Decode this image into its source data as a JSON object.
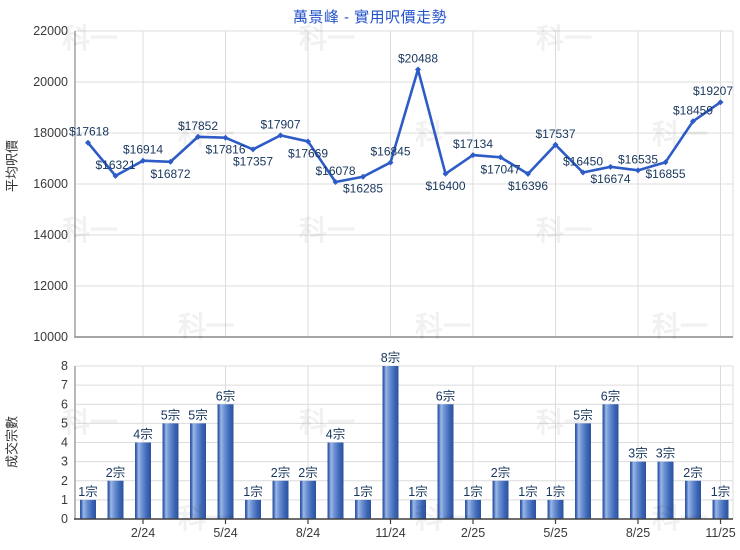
{
  "title": "萬景峰 - 實用呎價走勢",
  "watermark_text": "科一",
  "colors": {
    "title": "#2353cb",
    "line": "#2e5cc7",
    "data_label": "#17365d",
    "tick_label": "#3a3a3a",
    "grid": "#dcdcdc",
    "axis_light": "#a6a6a6",
    "axis_dark": "#3f3f3f",
    "bar_edge": "#2c519e",
    "bar_highlight": "#9db7e6"
  },
  "chart_data": [
    {
      "type": "line",
      "title": "萬景峰 - 實用呎價走勢",
      "ylabel": "平均呎價",
      "ylim": [
        10000,
        22000
      ],
      "yticks": [
        22000,
        20000,
        18000,
        16000,
        14000,
        12000,
        10000
      ],
      "x_tick_positions": [
        3,
        6,
        9,
        12,
        15,
        18,
        21,
        24
      ],
      "x_tick_labels": [
        "2/24",
        "5/24",
        "8/24",
        "11/24",
        "2/25",
        "5/25",
        "8/25",
        "11/25"
      ],
      "values": [
        17618,
        16321,
        16914,
        16872,
        17852,
        17816,
        17357,
        17907,
        17669,
        16078,
        16285,
        16845,
        20488,
        16400,
        17134,
        17047,
        16396,
        17537,
        16450,
        16674,
        16535,
        16855,
        18459,
        19207
      ],
      "point_labels": [
        "$17618",
        "$16321",
        "$16914",
        "$16872",
        "$17852",
        "$17816",
        "$17357",
        "$17907",
        "$17669",
        "$16078",
        "$16285",
        "$16845",
        "$20488",
        "$16400",
        "$17134",
        "$17047",
        "$16396",
        "$17537",
        "$16450",
        "$16674",
        "$16535",
        "$16855",
        "$18459",
        "$19207"
      ],
      "label_placement": [
        "above",
        "above",
        "above",
        "below",
        "above",
        "below",
        "below",
        "above",
        "below",
        "above",
        "below",
        "above",
        "above",
        "below",
        "above",
        "below",
        "below",
        "above",
        "above",
        "below",
        "above",
        "below",
        "above",
        "above"
      ],
      "grid": true,
      "legend": "none"
    },
    {
      "type": "bar",
      "title": "",
      "ylabel": "成交宗數",
      "ylim": [
        0,
        8
      ],
      "yticks": [
        8,
        7,
        6,
        5,
        4,
        3,
        2,
        1,
        0
      ],
      "x_tick_positions": [
        3,
        6,
        9,
        12,
        15,
        18,
        21,
        24
      ],
      "x_tick_labels": [
        "2/24",
        "5/24",
        "8/24",
        "11/24",
        "2/25",
        "5/25",
        "8/25",
        "11/25"
      ],
      "values": [
        1,
        2,
        4,
        5,
        5,
        6,
        1,
        2,
        2,
        4,
        1,
        8,
        1,
        6,
        1,
        2,
        1,
        1,
        5,
        6,
        3,
        3,
        2,
        1
      ],
      "bar_labels": [
        "1宗",
        "2宗",
        "4宗",
        "5宗",
        "5宗",
        "6宗",
        "1宗",
        "2宗",
        "2宗",
        "4宗",
        "1宗",
        "8宗",
        "1宗",
        "6宗",
        "1宗",
        "2宗",
        "1宗",
        "1宗",
        "5宗",
        "6宗",
        "3宗",
        "3宗",
        "2宗",
        "1宗"
      ],
      "grid": true,
      "legend": "none"
    }
  ]
}
